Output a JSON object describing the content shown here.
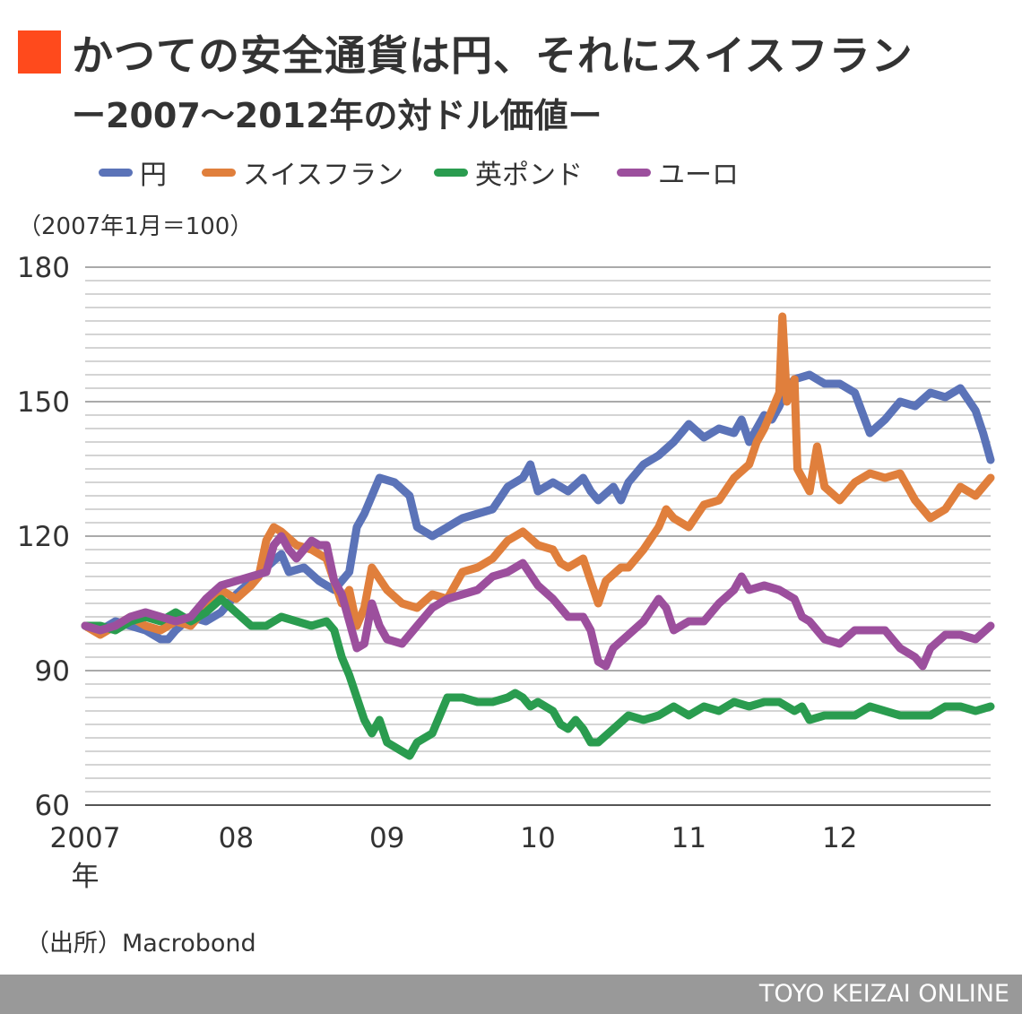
{
  "title_mark_color": "#FF4A1C",
  "title_line1": "かつての安全通貨は円、それにスイスフラン",
  "title_line2": "ー2007〜2012年の対ドル価値ー",
  "unit_label": "（2007年1月＝100）",
  "source": "（出所）Macrobond",
  "footer_brand": "TOYO KEIZAI ONLINE",
  "chart_data": {
    "type": "line",
    "y_ticks": [
      60,
      90,
      120,
      150,
      180
    ],
    "ylim": [
      60,
      180
    ],
    "xlim": [
      2007.0,
      2013.0
    ],
    "x_ticks": [
      {
        "value": 2007,
        "label": "2007",
        "sub": "年"
      },
      {
        "value": 2008,
        "label": "08"
      },
      {
        "value": 2009,
        "label": "09"
      },
      {
        "value": 2010,
        "label": "10"
      },
      {
        "value": 2011,
        "label": "11"
      },
      {
        "value": 2012,
        "label": "12"
      }
    ],
    "grid": true,
    "legend_position": "top",
    "series": [
      {
        "name": "円",
        "color": "#5B73B8",
        "points": [
          [
            2007.0,
            100
          ],
          [
            2007.1,
            99
          ],
          [
            2007.2,
            101
          ],
          [
            2007.3,
            100
          ],
          [
            2007.4,
            99
          ],
          [
            2007.5,
            97
          ],
          [
            2007.55,
            97
          ],
          [
            2007.6,
            99
          ],
          [
            2007.7,
            102
          ],
          [
            2007.8,
            101
          ],
          [
            2007.9,
            103
          ],
          [
            2008.0,
            107
          ],
          [
            2008.1,
            110
          ],
          [
            2008.2,
            113
          ],
          [
            2008.3,
            116
          ],
          [
            2008.35,
            112
          ],
          [
            2008.45,
            113
          ],
          [
            2008.55,
            110
          ],
          [
            2008.65,
            108
          ],
          [
            2008.75,
            112
          ],
          [
            2008.8,
            122
          ],
          [
            2008.85,
            125
          ],
          [
            2008.95,
            133
          ],
          [
            2009.05,
            132
          ],
          [
            2009.15,
            129
          ],
          [
            2009.2,
            122
          ],
          [
            2009.3,
            120
          ],
          [
            2009.4,
            122
          ],
          [
            2009.5,
            124
          ],
          [
            2009.6,
            125
          ],
          [
            2009.7,
            126
          ],
          [
            2009.8,
            131
          ],
          [
            2009.9,
            133
          ],
          [
            2009.95,
            136
          ],
          [
            2010.0,
            130
          ],
          [
            2010.1,
            132
          ],
          [
            2010.2,
            130
          ],
          [
            2010.3,
            133
          ],
          [
            2010.35,
            130
          ],
          [
            2010.4,
            128
          ],
          [
            2010.5,
            131
          ],
          [
            2010.55,
            128
          ],
          [
            2010.6,
            132
          ],
          [
            2010.7,
            136
          ],
          [
            2010.8,
            138
          ],
          [
            2010.9,
            141
          ],
          [
            2011.0,
            145
          ],
          [
            2011.1,
            142
          ],
          [
            2011.2,
            144
          ],
          [
            2011.3,
            143
          ],
          [
            2011.35,
            146
          ],
          [
            2011.4,
            141
          ],
          [
            2011.5,
            147
          ],
          [
            2011.55,
            146
          ],
          [
            2011.6,
            149
          ],
          [
            2011.65,
            153
          ],
          [
            2011.7,
            155
          ],
          [
            2011.8,
            156
          ],
          [
            2011.9,
            154
          ],
          [
            2012.0,
            154
          ],
          [
            2012.1,
            152
          ],
          [
            2012.2,
            143
          ],
          [
            2012.3,
            146
          ],
          [
            2012.4,
            150
          ],
          [
            2012.5,
            149
          ],
          [
            2012.6,
            152
          ],
          [
            2012.7,
            151
          ],
          [
            2012.8,
            153
          ],
          [
            2012.9,
            148
          ],
          [
            2012.95,
            143
          ],
          [
            2013.0,
            137
          ]
        ]
      },
      {
        "name": "スイスフラン",
        "color": "#E07F3C",
        "points": [
          [
            2007.0,
            100
          ],
          [
            2007.1,
            98
          ],
          [
            2007.2,
            100
          ],
          [
            2007.3,
            102
          ],
          [
            2007.4,
            100
          ],
          [
            2007.5,
            99
          ],
          [
            2007.6,
            101
          ],
          [
            2007.7,
            100
          ],
          [
            2007.8,
            104
          ],
          [
            2007.9,
            108
          ],
          [
            2008.0,
            106
          ],
          [
            2008.1,
            109
          ],
          [
            2008.15,
            111
          ],
          [
            2008.2,
            119
          ],
          [
            2008.25,
            122
          ],
          [
            2008.3,
            121
          ],
          [
            2008.4,
            118
          ],
          [
            2008.5,
            117
          ],
          [
            2008.6,
            115
          ],
          [
            2008.7,
            105
          ],
          [
            2008.75,
            108
          ],
          [
            2008.8,
            100
          ],
          [
            2008.85,
            104
          ],
          [
            2008.9,
            113
          ],
          [
            2009.0,
            108
          ],
          [
            2009.1,
            105
          ],
          [
            2009.2,
            104
          ],
          [
            2009.3,
            107
          ],
          [
            2009.4,
            106
          ],
          [
            2009.5,
            112
          ],
          [
            2009.6,
            113
          ],
          [
            2009.7,
            115
          ],
          [
            2009.8,
            119
          ],
          [
            2009.9,
            121
          ],
          [
            2010.0,
            118
          ],
          [
            2010.1,
            117
          ],
          [
            2010.15,
            114
          ],
          [
            2010.2,
            113
          ],
          [
            2010.3,
            115
          ],
          [
            2010.35,
            110
          ],
          [
            2010.4,
            105
          ],
          [
            2010.45,
            110
          ],
          [
            2010.55,
            113
          ],
          [
            2010.6,
            113
          ],
          [
            2010.7,
            117
          ],
          [
            2010.8,
            122
          ],
          [
            2010.85,
            126
          ],
          [
            2010.9,
            124
          ],
          [
            2011.0,
            122
          ],
          [
            2011.1,
            127
          ],
          [
            2011.2,
            128
          ],
          [
            2011.3,
            133
          ],
          [
            2011.4,
            136
          ],
          [
            2011.45,
            141
          ],
          [
            2011.5,
            144
          ],
          [
            2011.55,
            148
          ],
          [
            2011.6,
            152
          ],
          [
            2011.62,
            169
          ],
          [
            2011.65,
            150
          ],
          [
            2011.7,
            155
          ],
          [
            2011.72,
            135
          ],
          [
            2011.8,
            130
          ],
          [
            2011.85,
            140
          ],
          [
            2011.9,
            131
          ],
          [
            2012.0,
            128
          ],
          [
            2012.1,
            132
          ],
          [
            2012.2,
            134
          ],
          [
            2012.3,
            133
          ],
          [
            2012.4,
            134
          ],
          [
            2012.5,
            128
          ],
          [
            2012.6,
            124
          ],
          [
            2012.7,
            126
          ],
          [
            2012.8,
            131
          ],
          [
            2012.9,
            129
          ],
          [
            2013.0,
            133
          ]
        ]
      },
      {
        "name": "英ポンド",
        "color": "#2A9C4F",
        "points": [
          [
            2007.0,
            100
          ],
          [
            2007.1,
            100
          ],
          [
            2007.2,
            99
          ],
          [
            2007.3,
            101
          ],
          [
            2007.4,
            102
          ],
          [
            2007.5,
            101
          ],
          [
            2007.6,
            103
          ],
          [
            2007.7,
            101
          ],
          [
            2007.8,
            103
          ],
          [
            2007.9,
            106
          ],
          [
            2008.0,
            103
          ],
          [
            2008.1,
            100
          ],
          [
            2008.2,
            100
          ],
          [
            2008.3,
            102
          ],
          [
            2008.4,
            101
          ],
          [
            2008.5,
            100
          ],
          [
            2008.6,
            101
          ],
          [
            2008.65,
            99
          ],
          [
            2008.7,
            93
          ],
          [
            2008.75,
            89
          ],
          [
            2008.8,
            84
          ],
          [
            2008.85,
            79
          ],
          [
            2008.9,
            76
          ],
          [
            2008.95,
            79
          ],
          [
            2009.0,
            74
          ],
          [
            2009.1,
            72
          ],
          [
            2009.15,
            71
          ],
          [
            2009.2,
            74
          ],
          [
            2009.3,
            76
          ],
          [
            2009.35,
            80
          ],
          [
            2009.4,
            84
          ],
          [
            2009.5,
            84
          ],
          [
            2009.6,
            83
          ],
          [
            2009.7,
            83
          ],
          [
            2009.8,
            84
          ],
          [
            2009.85,
            85
          ],
          [
            2009.9,
            84
          ],
          [
            2009.95,
            82
          ],
          [
            2010.0,
            83
          ],
          [
            2010.1,
            81
          ],
          [
            2010.15,
            78
          ],
          [
            2010.2,
            77
          ],
          [
            2010.25,
            79
          ],
          [
            2010.3,
            77
          ],
          [
            2010.35,
            74
          ],
          [
            2010.4,
            74
          ],
          [
            2010.5,
            77
          ],
          [
            2010.6,
            80
          ],
          [
            2010.7,
            79
          ],
          [
            2010.8,
            80
          ],
          [
            2010.9,
            82
          ],
          [
            2011.0,
            80
          ],
          [
            2011.1,
            82
          ],
          [
            2011.2,
            81
          ],
          [
            2011.3,
            83
          ],
          [
            2011.4,
            82
          ],
          [
            2011.5,
            83
          ],
          [
            2011.6,
            83
          ],
          [
            2011.7,
            81
          ],
          [
            2011.75,
            82
          ],
          [
            2011.8,
            79
          ],
          [
            2011.9,
            80
          ],
          [
            2012.0,
            80
          ],
          [
            2012.1,
            80
          ],
          [
            2012.2,
            82
          ],
          [
            2012.3,
            81
          ],
          [
            2012.4,
            80
          ],
          [
            2012.5,
            80
          ],
          [
            2012.6,
            80
          ],
          [
            2012.7,
            82
          ],
          [
            2012.8,
            82
          ],
          [
            2012.9,
            81
          ],
          [
            2013.0,
            82
          ]
        ]
      },
      {
        "name": "ユーロ",
        "color": "#9C4F9D",
        "points": [
          [
            2007.0,
            100
          ],
          [
            2007.1,
            99
          ],
          [
            2007.2,
            100
          ],
          [
            2007.3,
            102
          ],
          [
            2007.4,
            103
          ],
          [
            2007.5,
            102
          ],
          [
            2007.6,
            101
          ],
          [
            2007.7,
            102
          ],
          [
            2007.8,
            106
          ],
          [
            2007.9,
            109
          ],
          [
            2008.0,
            110
          ],
          [
            2008.1,
            111
          ],
          [
            2008.2,
            112
          ],
          [
            2008.25,
            118
          ],
          [
            2008.3,
            120
          ],
          [
            2008.35,
            117
          ],
          [
            2008.4,
            115
          ],
          [
            2008.5,
            119
          ],
          [
            2008.55,
            118
          ],
          [
            2008.6,
            118
          ],
          [
            2008.65,
            110
          ],
          [
            2008.7,
            107
          ],
          [
            2008.75,
            101
          ],
          [
            2008.8,
            95
          ],
          [
            2008.85,
            96
          ],
          [
            2008.9,
            105
          ],
          [
            2008.95,
            100
          ],
          [
            2009.0,
            97
          ],
          [
            2009.1,
            96
          ],
          [
            2009.15,
            98
          ],
          [
            2009.2,
            100
          ],
          [
            2009.3,
            104
          ],
          [
            2009.4,
            106
          ],
          [
            2009.5,
            107
          ],
          [
            2009.6,
            108
          ],
          [
            2009.7,
            111
          ],
          [
            2009.8,
            112
          ],
          [
            2009.9,
            114
          ],
          [
            2010.0,
            109
          ],
          [
            2010.1,
            106
          ],
          [
            2010.2,
            102
          ],
          [
            2010.3,
            102
          ],
          [
            2010.35,
            99
          ],
          [
            2010.4,
            92
          ],
          [
            2010.45,
            91
          ],
          [
            2010.5,
            95
          ],
          [
            2010.6,
            98
          ],
          [
            2010.7,
            101
          ],
          [
            2010.8,
            106
          ],
          [
            2010.85,
            104
          ],
          [
            2010.9,
            99
          ],
          [
            2011.0,
            101
          ],
          [
            2011.1,
            101
          ],
          [
            2011.2,
            105
          ],
          [
            2011.3,
            108
          ],
          [
            2011.35,
            111
          ],
          [
            2011.4,
            108
          ],
          [
            2011.5,
            109
          ],
          [
            2011.6,
            108
          ],
          [
            2011.7,
            106
          ],
          [
            2011.75,
            102
          ],
          [
            2011.8,
            101
          ],
          [
            2011.9,
            97
          ],
          [
            2012.0,
            96
          ],
          [
            2012.1,
            99
          ],
          [
            2012.2,
            99
          ],
          [
            2012.3,
            99
          ],
          [
            2012.4,
            95
          ],
          [
            2012.5,
            93
          ],
          [
            2012.55,
            91
          ],
          [
            2012.6,
            95
          ],
          [
            2012.7,
            98
          ],
          [
            2012.8,
            98
          ],
          [
            2012.9,
            97
          ],
          [
            2013.0,
            100
          ]
        ]
      }
    ]
  }
}
